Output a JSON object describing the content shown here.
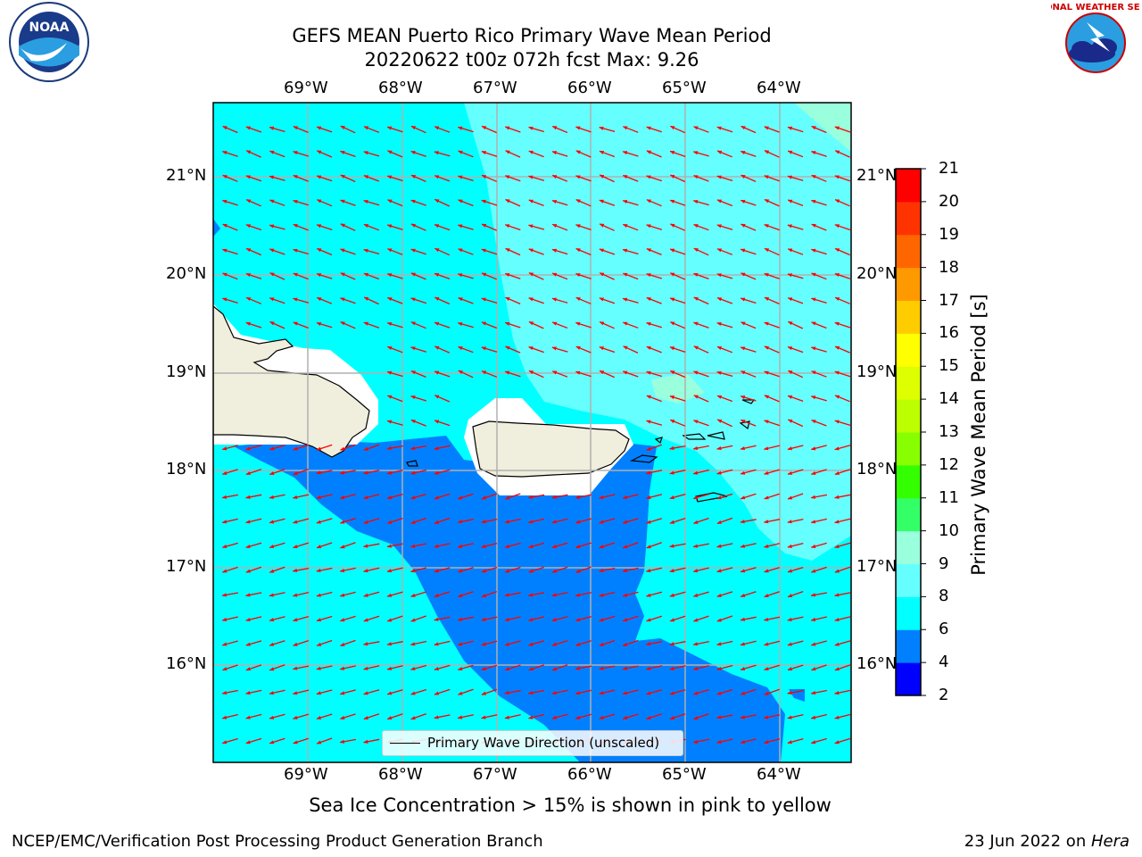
{
  "title": {
    "line1": "GEFS MEAN Puerto Rico Primary Wave Mean Period",
    "line2": "20220622 t00z 072h fcst   Max: 9.26"
  },
  "axes": {
    "lon_labels": [
      "69°W",
      "68°W",
      "67°W",
      "66°W",
      "65°W",
      "64°W"
    ],
    "lat_labels": [
      "21°N",
      "20°N",
      "19°N",
      "18°N",
      "17°N",
      "16°N"
    ],
    "lon_range": [
      -70.0,
      -63.25
    ],
    "lat_range": [
      15.0,
      21.75
    ],
    "gridlines": true
  },
  "colorbar": {
    "title": "Primary Wave Mean Period [s]",
    "ticks": [
      "21",
      "20",
      "19",
      "18",
      "17",
      "16",
      "15",
      "14",
      "13",
      "12",
      "11",
      "10",
      "9",
      "8",
      "6",
      "4",
      "2"
    ],
    "colors": [
      "#0000ff",
      "#0080ff",
      "#00ffff",
      "#66ffff",
      "#99ffdd",
      "#33ff66",
      "#33ff00",
      "#88ff00",
      "#bbff00",
      "#ddff00",
      "#ffff00",
      "#ffcc00",
      "#ff9900",
      "#ff6600",
      "#ff3300",
      "#ff0000"
    ]
  },
  "legend": {
    "label": "Primary Wave Direction (unscaled)"
  },
  "note": "Sea Ice Concentration > 15% is shown in pink to yellow",
  "footer": {
    "left": "NCEP/EMC/Verification Post Processing Product Generation Branch",
    "right_prefix": "23 Jun 2022 on ",
    "right_host": "Hera"
  },
  "logos": {
    "left": "NOAA",
    "right": "NATIONAL WEATHER SERVICE"
  },
  "field_colors": {
    "period_6_8": "#00ffff",
    "period_8_9": "#66ffff",
    "period_4_6": "#0080ff",
    "period_9_10": "#99ffdd",
    "land": "#f0eedc",
    "arrow": "#ff0000"
  }
}
